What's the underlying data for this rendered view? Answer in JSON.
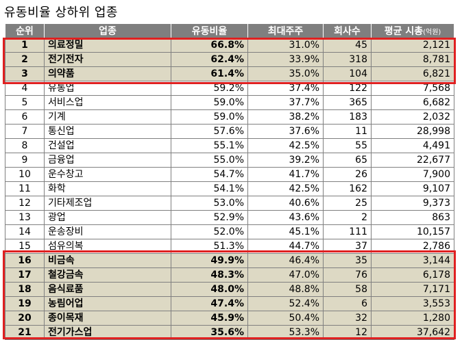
{
  "title": "유동비율 상하위 업종",
  "headers": {
    "rank": "순위",
    "industry": "업종",
    "float_ratio": "유동비율",
    "major_holder": "최대주주",
    "companies": "회사수",
    "avg_cap": "평균 시총",
    "avg_cap_unit": "(억원)"
  },
  "highlight_color": "#ddd9c4",
  "box_color": "#e02020",
  "rows": [
    {
      "rank": "1",
      "industry": "의료정밀",
      "float_ratio": "66.8%",
      "major_holder": "31.0%",
      "companies": "45",
      "avg_cap": "2,121",
      "highlighted": true
    },
    {
      "rank": "2",
      "industry": "전기전자",
      "float_ratio": "62.4%",
      "major_holder": "33.9%",
      "companies": "318",
      "avg_cap": "8,781",
      "highlighted": true
    },
    {
      "rank": "3",
      "industry": "의약품",
      "float_ratio": "61.4%",
      "major_holder": "35.0%",
      "companies": "104",
      "avg_cap": "6,821",
      "highlighted": true
    },
    {
      "rank": "4",
      "industry": "유통업",
      "float_ratio": "59.2%",
      "major_holder": "37.4%",
      "companies": "122",
      "avg_cap": "7,568",
      "highlighted": false
    },
    {
      "rank": "5",
      "industry": "서비스업",
      "float_ratio": "59.0%",
      "major_holder": "37.7%",
      "companies": "365",
      "avg_cap": "6,682",
      "highlighted": false
    },
    {
      "rank": "6",
      "industry": "기계",
      "float_ratio": "59.0%",
      "major_holder": "38.2%",
      "companies": "183",
      "avg_cap": "2,032",
      "highlighted": false
    },
    {
      "rank": "7",
      "industry": "통신업",
      "float_ratio": "57.6%",
      "major_holder": "37.6%",
      "companies": "11",
      "avg_cap": "28,998",
      "highlighted": false
    },
    {
      "rank": "8",
      "industry": "건설업",
      "float_ratio": "55.1%",
      "major_holder": "42.5%",
      "companies": "55",
      "avg_cap": "4,491",
      "highlighted": false
    },
    {
      "rank": "9",
      "industry": "금융업",
      "float_ratio": "55.0%",
      "major_holder": "39.2%",
      "companies": "65",
      "avg_cap": "22,677",
      "highlighted": false
    },
    {
      "rank": "10",
      "industry": "운수창고",
      "float_ratio": "54.7%",
      "major_holder": "41.7%",
      "companies": "26",
      "avg_cap": "7,900",
      "highlighted": false
    },
    {
      "rank": "11",
      "industry": "화학",
      "float_ratio": "54.1%",
      "major_holder": "42.5%",
      "companies": "162",
      "avg_cap": "9,107",
      "highlighted": false
    },
    {
      "rank": "12",
      "industry": "기타제조업",
      "float_ratio": "53.0%",
      "major_holder": "40.6%",
      "companies": "25",
      "avg_cap": "9,373",
      "highlighted": false
    },
    {
      "rank": "13",
      "industry": "광업",
      "float_ratio": "52.9%",
      "major_holder": "43.6%",
      "companies": "2",
      "avg_cap": "863",
      "highlighted": false
    },
    {
      "rank": "14",
      "industry": "운송장비",
      "float_ratio": "52.0%",
      "major_holder": "45.1%",
      "companies": "111",
      "avg_cap": "10,157",
      "highlighted": false
    },
    {
      "rank": "15",
      "industry": "섬유의복",
      "float_ratio": "51.3%",
      "major_holder": "44.7%",
      "companies": "37",
      "avg_cap": "2,786",
      "highlighted": false
    },
    {
      "rank": "16",
      "industry": "비금속",
      "float_ratio": "49.9%",
      "major_holder": "46.4%",
      "companies": "35",
      "avg_cap": "3,144",
      "highlighted": true
    },
    {
      "rank": "17",
      "industry": "철강금속",
      "float_ratio": "48.3%",
      "major_holder": "47.0%",
      "companies": "76",
      "avg_cap": "6,178",
      "highlighted": true
    },
    {
      "rank": "18",
      "industry": "음식료품",
      "float_ratio": "48.0%",
      "major_holder": "48.8%",
      "companies": "58",
      "avg_cap": "7,171",
      "highlighted": true
    },
    {
      "rank": "19",
      "industry": "농림어업",
      "float_ratio": "47.4%",
      "major_holder": "52.4%",
      "companies": "6",
      "avg_cap": "3,553",
      "highlighted": true
    },
    {
      "rank": "20",
      "industry": "종이목재",
      "float_ratio": "45.9%",
      "major_holder": "50.4%",
      "companies": "32",
      "avg_cap": "1,280",
      "highlighted": true
    },
    {
      "rank": "21",
      "industry": "전기가스업",
      "float_ratio": "35.6%",
      "major_holder": "53.3%",
      "companies": "12",
      "avg_cap": "37,642",
      "highlighted": true
    }
  ]
}
